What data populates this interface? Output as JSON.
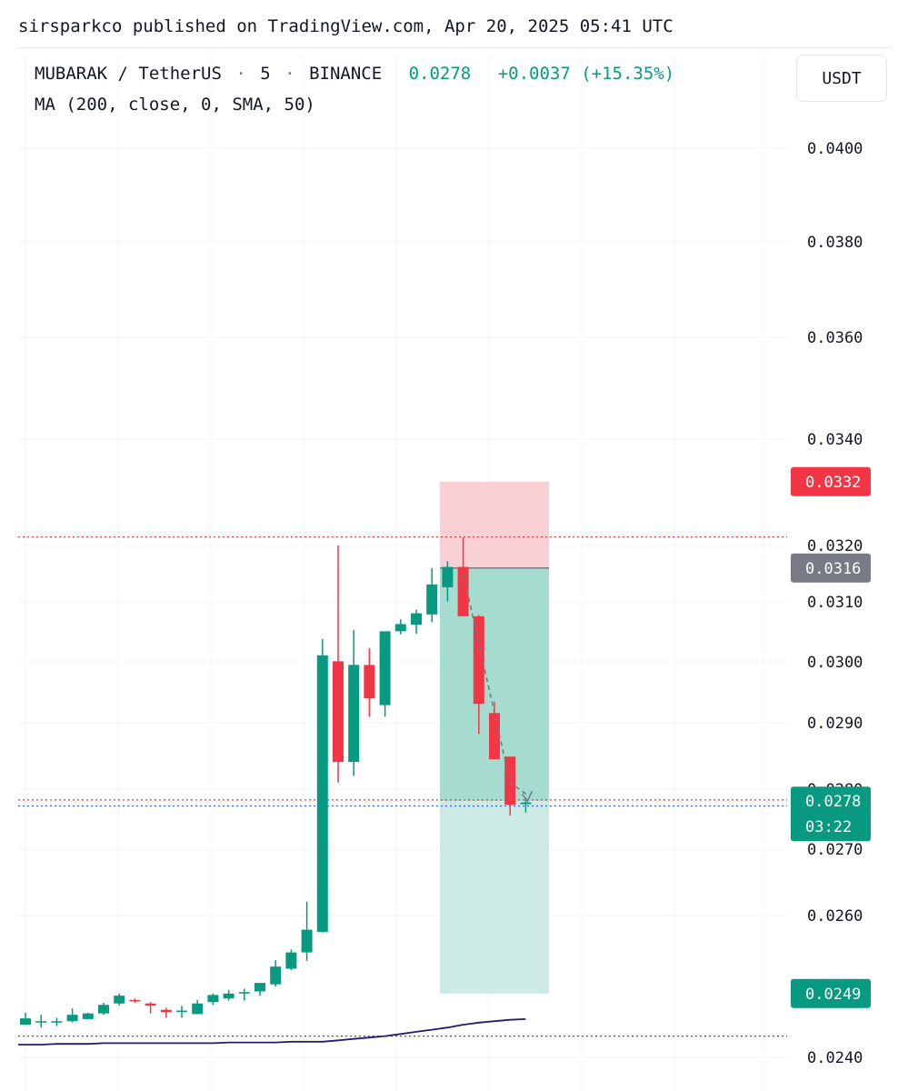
{
  "header": {
    "text": "sirsparkco published on TradingView.com, Apr 20, 2025 05:41 UTC"
  },
  "legend": {
    "symbol": "MUBARAK / TetherUS",
    "interval": "5",
    "exchange": "BINANCE",
    "last": "0.0278",
    "change": "+0.0037 (+15.35%)",
    "indicator": "MA (200, close, 0, SMA, 50)"
  },
  "currency_button": "USDT",
  "colors": {
    "up": "#089981",
    "down": "#f23645",
    "ma": "#2a1a6e",
    "stop_zone": "#f9d0d4",
    "target_zone": "#a6dccf",
    "target_zone_light": "#cdebe4",
    "neutral_label": "#787b86"
  },
  "chart_data": {
    "type": "candlestick",
    "y_ticks": [
      "0.0240",
      "0.0260",
      "0.0270",
      "0.0280",
      "0.0290",
      "0.0300",
      "0.0310",
      "0.0320",
      "0.0340",
      "0.0360",
      "0.0380",
      "0.0400"
    ],
    "candles": [
      {
        "o": 0.02446,
        "h": 0.02463,
        "l": 0.02446,
        "c": 0.02455
      },
      {
        "o": 0.02451,
        "h": 0.0246,
        "l": 0.02442,
        "c": 0.02451
      },
      {
        "o": 0.02451,
        "h": 0.02456,
        "l": 0.02444,
        "c": 0.02451
      },
      {
        "o": 0.02451,
        "h": 0.02469,
        "l": 0.02449,
        "c": 0.0246
      },
      {
        "o": 0.02454,
        "h": 0.02463,
        "l": 0.02454,
        "c": 0.02462
      },
      {
        "o": 0.02462,
        "h": 0.02477,
        "l": 0.0246,
        "c": 0.02474
      },
      {
        "o": 0.02476,
        "h": 0.0249,
        "l": 0.02473,
        "c": 0.02487
      },
      {
        "o": 0.02481,
        "h": 0.02483,
        "l": 0.02477,
        "c": 0.0248
      },
      {
        "o": 0.02476,
        "h": 0.02478,
        "l": 0.02462,
        "c": 0.02473
      },
      {
        "o": 0.02467,
        "h": 0.0247,
        "l": 0.02456,
        "c": 0.02464
      },
      {
        "o": 0.02464,
        "h": 0.02473,
        "l": 0.02456,
        "c": 0.02466
      },
      {
        "o": 0.02461,
        "h": 0.02481,
        "l": 0.02461,
        "c": 0.02476
      },
      {
        "o": 0.02478,
        "h": 0.0249,
        "l": 0.02474,
        "c": 0.02488
      },
      {
        "o": 0.02483,
        "h": 0.02495,
        "l": 0.0248,
        "c": 0.0249
      },
      {
        "o": 0.0249,
        "h": 0.02497,
        "l": 0.0248,
        "c": 0.02492
      },
      {
        "o": 0.02493,
        "h": 0.02505,
        "l": 0.02487,
        "c": 0.02505
      },
      {
        "o": 0.02503,
        "h": 0.02537,
        "l": 0.025,
        "c": 0.02528
      },
      {
        "o": 0.02525,
        "h": 0.02552,
        "l": 0.02523,
        "c": 0.02548
      },
      {
        "o": 0.02548,
        "h": 0.02621,
        "l": 0.02536,
        "c": 0.0258
      },
      {
        "o": 0.02577,
        "h": 0.03038,
        "l": 0.02576,
        "c": 0.03011
      },
      {
        "o": 0.03001,
        "h": 0.032,
        "l": 0.0281,
        "c": 0.02841
      },
      {
        "o": 0.02841,
        "h": 0.03053,
        "l": 0.0282,
        "c": 0.02995
      },
      {
        "o": 0.02995,
        "h": 0.03023,
        "l": 0.0291,
        "c": 0.0294
      },
      {
        "o": 0.02929,
        "h": 0.0305,
        "l": 0.0291,
        "c": 0.03051
      },
      {
        "o": 0.03051,
        "h": 0.03071,
        "l": 0.03046,
        "c": 0.03063
      },
      {
        "o": 0.03062,
        "h": 0.03087,
        "l": 0.03047,
        "c": 0.03081
      },
      {
        "o": 0.03079,
        "h": 0.0316,
        "l": 0.03066,
        "c": 0.03131
      },
      {
        "o": 0.03126,
        "h": 0.03172,
        "l": 0.03101,
        "c": 0.03162
      },
      {
        "o": 0.03162,
        "h": 0.03215,
        "l": 0.0308,
        "c": 0.03076
      },
      {
        "o": 0.03076,
        "h": 0.03078,
        "l": 0.02883,
        "c": 0.02931
      },
      {
        "o": 0.02916,
        "h": 0.02935,
        "l": 0.02845,
        "c": 0.02845
      },
      {
        "o": 0.02849,
        "h": 0.02849,
        "l": 0.02756,
        "c": 0.02774
      },
      {
        "o": 0.02775,
        "h": 0.02786,
        "l": 0.02761,
        "c": 0.02778
      }
    ],
    "ma_line": [
      0.02418,
      0.02418,
      0.02419,
      0.02419,
      0.02419,
      0.0242,
      0.0242,
      0.0242,
      0.0242,
      0.0242,
      0.0242,
      0.0242,
      0.0242,
      0.02421,
      0.02421,
      0.02421,
      0.02421,
      0.02422,
      0.02422,
      0.02422,
      0.02424,
      0.02426,
      0.02428,
      0.0243,
      0.02433,
      0.02436,
      0.02439,
      0.02442,
      0.02446,
      0.02449,
      0.02451,
      0.02453,
      0.02454
    ],
    "position": {
      "type": "short",
      "entry": 0.0316,
      "stop": 0.0332,
      "target": 0.0249
    },
    "price_labels": [
      {
        "value": 0.0332,
        "text": "0.0332",
        "kind": "stop"
      },
      {
        "value": 0.0316,
        "text": "0.0316",
        "kind": "entry"
      },
      {
        "value": 0.0278,
        "text": "0.0278",
        "sub": "03:22",
        "kind": "last"
      },
      {
        "value": 0.0249,
        "text": "0.0249",
        "kind": "target"
      }
    ],
    "horizontal_lines": [
      {
        "value": 0.03216,
        "color": "#f23645",
        "style": "dotted"
      },
      {
        "value": 0.02782,
        "color": "#f23645",
        "style": "dotted"
      },
      {
        "value": 0.02772,
        "color": "#2962ff",
        "style": "dotted"
      },
      {
        "value": 0.0243,
        "color": "#555555",
        "style": "dotted"
      }
    ]
  }
}
